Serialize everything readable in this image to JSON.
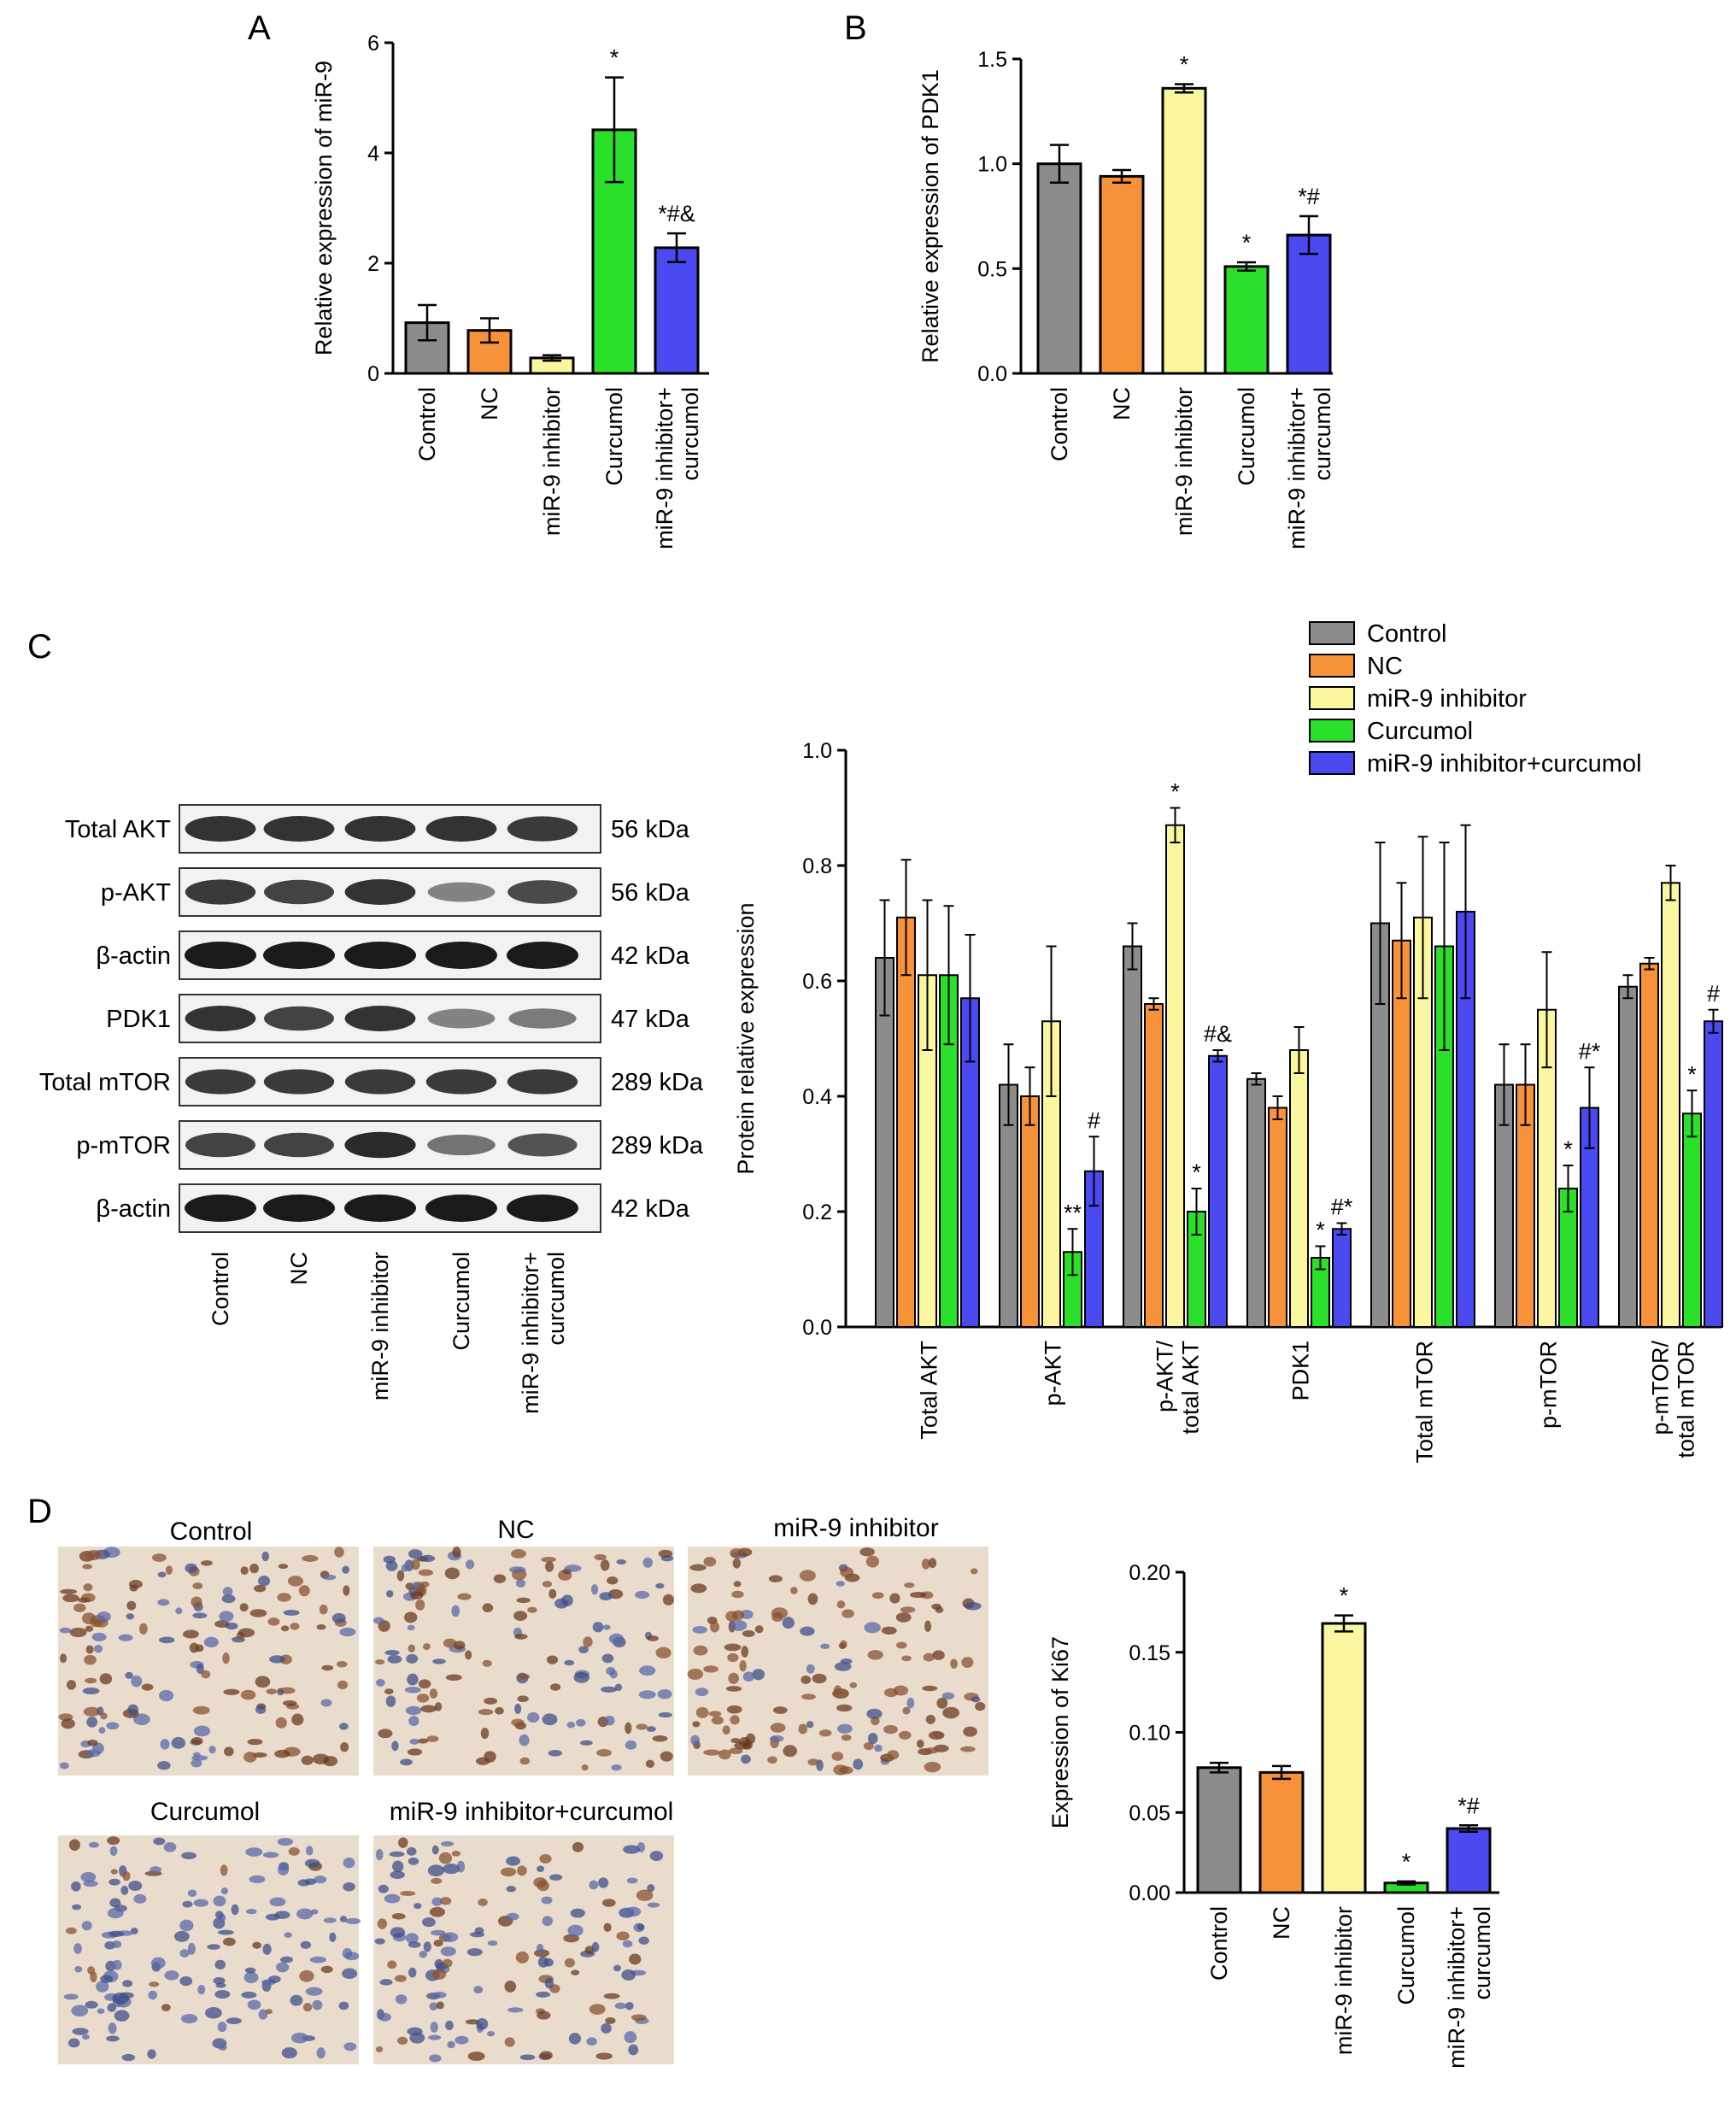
{
  "colors": {
    "Control": "#8c8c8c",
    "NC": "#f7923a",
    "miR-9 inhibitor": "#fbf6a0",
    "Curcumol": "#2be02b",
    "miR-9 inhibitor+curcumol": "#4a4af0"
  },
  "panels": {
    "A": "A",
    "B": "B",
    "C": "C",
    "D": "D"
  },
  "chart_data": [
    {
      "id": "A",
      "type": "bar",
      "categories": [
        "Control",
        "NC",
        "miR-9 inhibitor",
        "Curcumol",
        "miR-9 inhibitor+ curcumol"
      ],
      "values": [
        0.92,
        0.78,
        0.28,
        4.42,
        2.28
      ],
      "errors": [
        0.32,
        0.22,
        0.05,
        0.95,
        0.26
      ],
      "significance": [
        "",
        "",
        "",
        "*",
        "*#&"
      ],
      "ylabel": "Relative expression of miR-9",
      "ylim": [
        0,
        6
      ],
      "yticks": [
        "0",
        "2",
        "4",
        "6"
      ]
    },
    {
      "id": "B",
      "type": "bar",
      "categories": [
        "Control",
        "NC",
        "miR-9 inhibitor",
        "Curcumol",
        "miR-9 inhibitor+ curcumol"
      ],
      "values": [
        1.0,
        0.94,
        1.36,
        0.51,
        0.66
      ],
      "errors": [
        0.09,
        0.03,
        0.02,
        0.02,
        0.09
      ],
      "significance": [
        "",
        "",
        "*",
        "*",
        "*#"
      ],
      "ylabel": "Relative expression of PDK1",
      "ylim": [
        0,
        1.5
      ],
      "yticks": [
        "0.0",
        "0.5",
        "1.0",
        "1.5"
      ]
    },
    {
      "id": "C",
      "type": "bar",
      "categories": [
        "Total AKT",
        "p-AKT",
        "p-AKT/ total AKT",
        "PDK1",
        "Total mTOR",
        "p-mTOR",
        "p-mTOR/ total mTOR"
      ],
      "series": [
        {
          "name": "Control",
          "values": [
            0.64,
            0.42,
            0.66,
            0.43,
            0.7,
            0.42,
            0.59
          ],
          "errors": [
            0.1,
            0.07,
            0.04,
            0.01,
            0.14,
            0.07,
            0.02
          ],
          "significance": [
            "",
            "",
            "",
            "",
            "",
            "",
            ""
          ]
        },
        {
          "name": "NC",
          "values": [
            0.71,
            0.4,
            0.56,
            0.38,
            0.67,
            0.42,
            0.63
          ],
          "errors": [
            0.1,
            0.05,
            0.01,
            0.02,
            0.1,
            0.07,
            0.01
          ],
          "significance": [
            "",
            "",
            "",
            "",
            "",
            "",
            ""
          ]
        },
        {
          "name": "miR-9 inhibitor",
          "values": [
            0.61,
            0.53,
            0.87,
            0.48,
            0.71,
            0.55,
            0.77
          ],
          "errors": [
            0.13,
            0.13,
            0.03,
            0.04,
            0.14,
            0.1,
            0.03
          ],
          "significance": [
            "",
            "",
            "*",
            "",
            "",
            "",
            ""
          ]
        },
        {
          "name": "Curcumol",
          "values": [
            0.61,
            0.13,
            0.2,
            0.12,
            0.66,
            0.24,
            0.37
          ],
          "errors": [
            0.12,
            0.04,
            0.04,
            0.02,
            0.18,
            0.04,
            0.04
          ],
          "significance": [
            "",
            "**",
            "*",
            "*",
            "",
            "*",
            "*"
          ]
        },
        {
          "name": "miR-9 inhibitor+curcumol",
          "values": [
            0.57,
            0.27,
            0.47,
            0.17,
            0.72,
            0.38,
            0.53
          ],
          "errors": [
            0.11,
            0.06,
            0.01,
            0.01,
            0.15,
            0.07,
            0.02
          ],
          "significance": [
            "",
            "#",
            "#&",
            "#*",
            "",
            "#*",
            "#"
          ]
        }
      ],
      "ylabel": "Protein relative expression",
      "ylim": [
        0,
        1.0
      ],
      "yticks": [
        "0.0",
        "0.2",
        "0.4",
        "0.6",
        "0.8",
        "1.0"
      ],
      "legend_position": "top-right"
    },
    {
      "id": "D",
      "type": "bar",
      "categories": [
        "Control",
        "NC",
        "miR-9 inhibitor",
        "Curcumol",
        "miR-9 inhibitor+ curcumol"
      ],
      "values": [
        0.078,
        0.075,
        0.168,
        0.006,
        0.04
      ],
      "errors": [
        0.003,
        0.004,
        0.005,
        0.001,
        0.002
      ],
      "significance": [
        "",
        "",
        "*",
        "*",
        "*#"
      ],
      "ylabel": "Expression of Ki67",
      "ylim": [
        0,
        0.2
      ],
      "yticks": [
        "0.00",
        "0.05",
        "0.10",
        "0.15",
        "0.20"
      ]
    }
  ],
  "western_blot": {
    "rows": [
      {
        "label": "Total AKT",
        "kda": "56 kDa",
        "intensity": [
          0.85,
          0.85,
          0.85,
          0.85,
          0.8
        ]
      },
      {
        "label": "p-AKT",
        "kda": "56 kDa",
        "intensity": [
          0.8,
          0.75,
          0.85,
          0.35,
          0.7
        ]
      },
      {
        "label": "β-actin",
        "kda": "42 kDa",
        "intensity": [
          1,
          1,
          1,
          1,
          1
        ]
      },
      {
        "label": "PDK1",
        "kda": "47 kDa",
        "intensity": [
          0.85,
          0.75,
          0.85,
          0.35,
          0.4
        ]
      },
      {
        "label": "Total mTOR",
        "kda": "289 kDa",
        "intensity": [
          0.8,
          0.8,
          0.8,
          0.8,
          0.8
        ]
      },
      {
        "label": "p-mTOR",
        "kda": "289 kDa",
        "intensity": [
          0.75,
          0.75,
          0.9,
          0.45,
          0.65
        ]
      },
      {
        "label": "β-actin",
        "kda": "42 kDa",
        "intensity": [
          1,
          1,
          1,
          1,
          1
        ]
      }
    ],
    "lanes": [
      "Control",
      "NC",
      "miR-9 inhibitor",
      "Curcumol",
      "miR-9 inhibitor+ curcumol"
    ]
  },
  "ihc_images": [
    {
      "title": "Control",
      "stain": "high"
    },
    {
      "title": "NC",
      "stain": "high"
    },
    {
      "title": "miR-9 inhibitor",
      "stain": "veryhigh"
    },
    {
      "title": "Curcumol",
      "stain": "low"
    },
    {
      "title": "miR-9 inhibitor+curcumol",
      "stain": "medium"
    }
  ]
}
